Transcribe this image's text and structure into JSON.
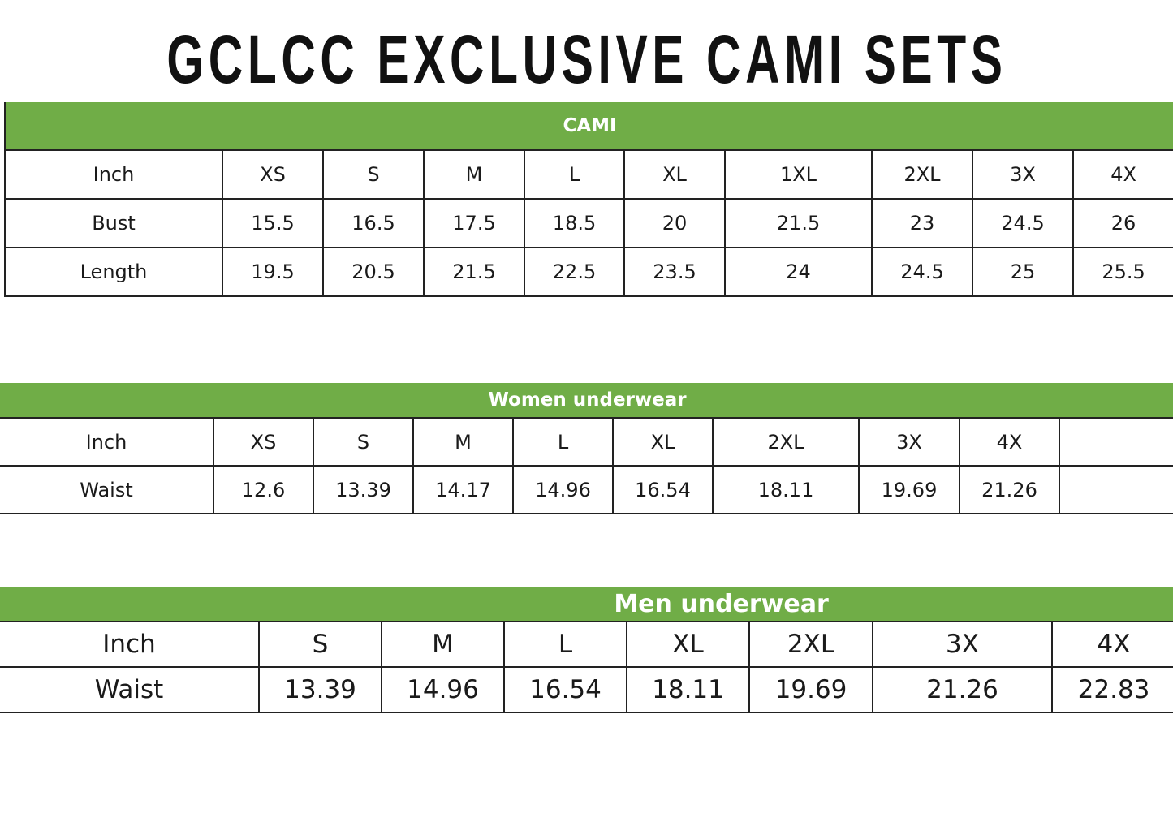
{
  "title": "GCLCC EXCLUSIVE CAMI SETS",
  "colors": {
    "header_green": "#70ad47",
    "header_text": "#ffffff"
  },
  "tables": [
    {
      "name": "cami",
      "heading": "CAMI",
      "columns": [
        "Inch",
        "XS",
        "S",
        "M",
        "L",
        "XL",
        "1XL",
        "2XL",
        "3X",
        "4X"
      ],
      "rows": [
        [
          "Bust",
          "15.5",
          "16.5",
          "17.5",
          "18.5",
          "20",
          "21.5",
          "23",
          "24.5",
          "26"
        ],
        [
          "Length",
          "19.5",
          "20.5",
          "21.5",
          "22.5",
          "23.5",
          "24",
          "24.5",
          "25",
          "25.5"
        ]
      ]
    },
    {
      "name": "women-underwear",
      "heading": "Women underwear",
      "columns": [
        "Inch",
        "XS",
        "S",
        "M",
        "L",
        "XL",
        "2XL",
        "3X",
        "4X",
        ""
      ],
      "rows": [
        [
          "Waist",
          "12.6",
          "13.39",
          "14.17",
          "14.96",
          "16.54",
          "18.11",
          "19.69",
          "21.26",
          ""
        ]
      ]
    },
    {
      "name": "men-underwear",
      "heading": "Men underwear",
      "columns": [
        "Inch",
        "S",
        "M",
        "L",
        "XL",
        "2XL",
        "3X",
        "4X"
      ],
      "rows": [
        [
          "Waist",
          "13.39",
          "14.96",
          "16.54",
          "18.11",
          "19.69",
          "21.26",
          "22.83"
        ]
      ]
    }
  ]
}
